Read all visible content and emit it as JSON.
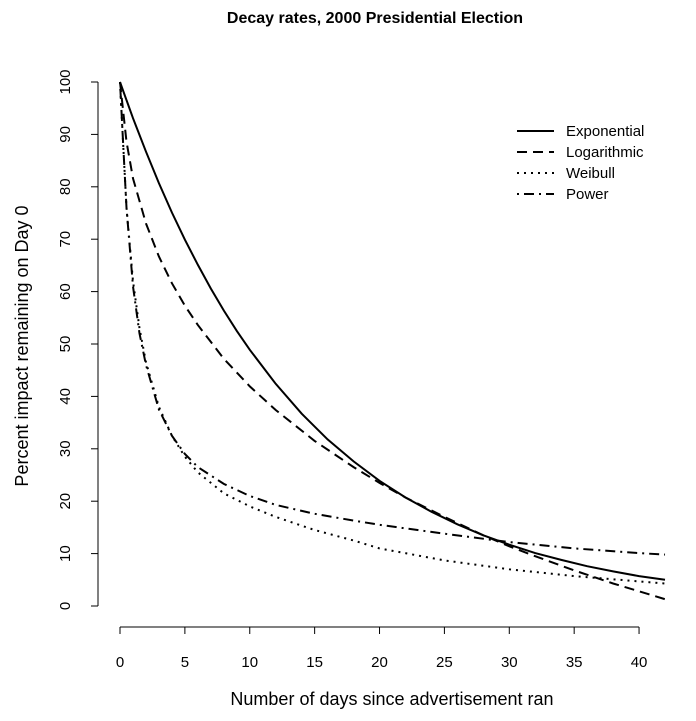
{
  "chart_data": {
    "type": "line",
    "title": "Decay rates, 2000 Presidential Election",
    "xlabel": "Number of days since advertisement ran",
    "ylabel": "Percent impact remaining on Day 0",
    "xlim": [
      0,
      42
    ],
    "ylim": [
      0,
      100
    ],
    "x_ticks": [
      0,
      5,
      10,
      15,
      20,
      25,
      30,
      35,
      40
    ],
    "y_ticks": [
      0,
      10,
      20,
      30,
      40,
      50,
      60,
      70,
      80,
      90,
      100
    ],
    "grid": false,
    "legend_position": "top-right",
    "series": [
      {
        "name": "Exponential",
        "line_style": "solid",
        "x": [
          0,
          1,
          2,
          3,
          4,
          5,
          6,
          7,
          8,
          9,
          10,
          12,
          14,
          16,
          18,
          20,
          22,
          24,
          26,
          28,
          30,
          32,
          34,
          36,
          38,
          40,
          42
        ],
        "y": [
          100,
          93.1,
          86.7,
          80.7,
          75.1,
          69.9,
          65.1,
          60.6,
          56.4,
          52.5,
          48.9,
          42.4,
          36.7,
          31.8,
          27.6,
          23.9,
          20.7,
          18.0,
          15.6,
          13.5,
          11.7,
          10.1,
          8.8,
          7.6,
          6.6,
          5.7,
          5.0
        ]
      },
      {
        "name": "Logarithmic",
        "line_style": "dashed",
        "x": [
          0,
          0.5,
          1,
          2,
          3,
          4,
          5,
          6,
          8,
          10,
          12,
          15,
          18,
          20,
          22,
          25,
          28,
          30,
          32,
          35,
          38,
          40,
          42
        ],
        "y": [
          100,
          88.6,
          81.6,
          73.0,
          66.7,
          61.6,
          57.3,
          53.6,
          47.2,
          41.9,
          37.4,
          31.5,
          26.5,
          23.5,
          20.7,
          17.0,
          13.5,
          11.4,
          9.5,
          6.8,
          4.3,
          2.8,
          1.3
        ]
      },
      {
        "name": "Weibull",
        "line_style": "dotted",
        "x": [
          0,
          0.25,
          0.5,
          1,
          1.5,
          2,
          3,
          4,
          5,
          6,
          8,
          10,
          12,
          15,
          18,
          20,
          25,
          30,
          35,
          40,
          42
        ],
        "y": [
          100,
          88,
          76,
          62,
          53,
          46.5,
          38.0,
          32.5,
          28.5,
          25.5,
          21.5,
          19.0,
          17.0,
          14.5,
          12.5,
          11.0,
          8.7,
          7.0,
          5.7,
          4.7,
          4.3
        ]
      },
      {
        "name": "Power",
        "line_style": "dashdot",
        "x": [
          0,
          0.25,
          0.5,
          1,
          1.5,
          2,
          3,
          4,
          5,
          6,
          8,
          10,
          12,
          15,
          18,
          20,
          25,
          30,
          35,
          40,
          42
        ],
        "y": [
          100,
          88,
          76,
          61,
          52,
          46.0,
          37.5,
          32.5,
          29.0,
          26.5,
          23.3,
          21.0,
          19.3,
          17.6,
          16.3,
          15.5,
          13.8,
          12.2,
          11.0,
          10.1,
          9.8
        ]
      }
    ]
  }
}
